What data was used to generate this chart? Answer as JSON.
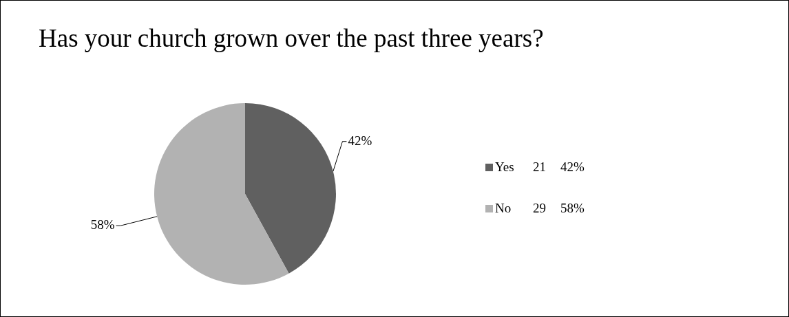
{
  "chart_data": {
    "type": "pie",
    "title": "Has your church grown over the past three years?",
    "categories": [
      "Yes",
      "No"
    ],
    "values": [
      42,
      58
    ],
    "annotations": [
      "21",
      "29"
    ],
    "value_labels": [
      "42%",
      "58%"
    ],
    "colors": [
      "#606060",
      "#b2b2b2"
    ],
    "legend": "right"
  }
}
